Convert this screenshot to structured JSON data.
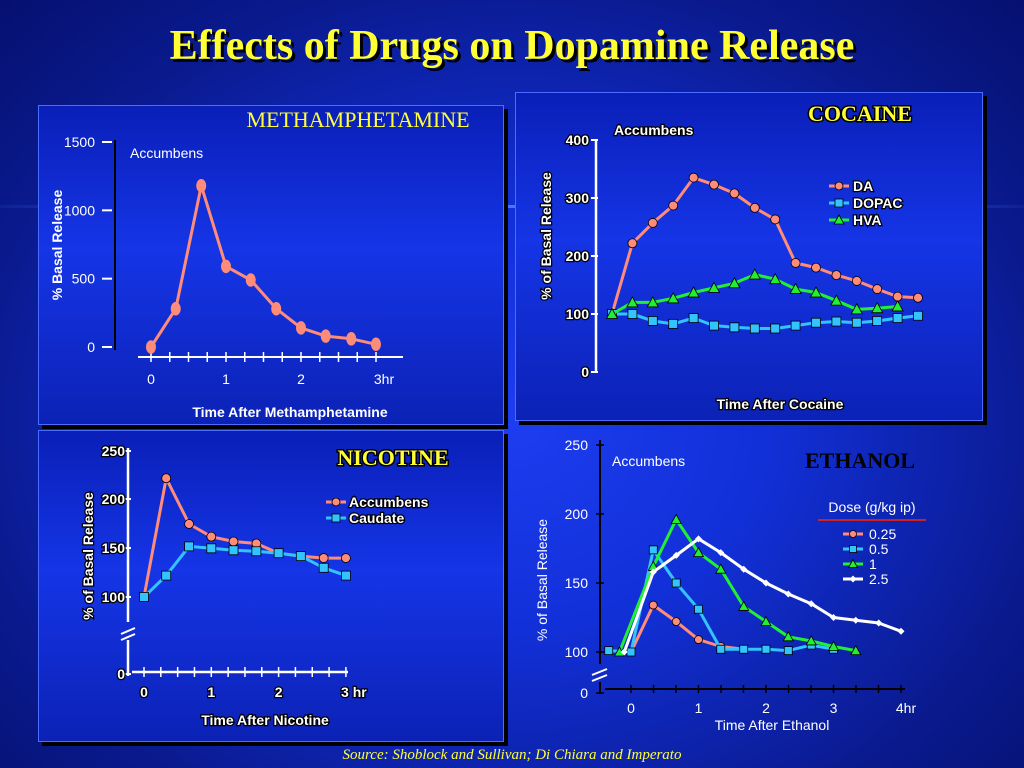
{
  "title": "Effects of Drugs on Dopamine Release",
  "source": "Source: Shoblock and Sullivan; Di Chiara and Imperato",
  "colors": {
    "title": "#ffff33",
    "salmon": "#ff8c78",
    "cyan": "#33c4ff",
    "green": "#22ee33",
    "white": "#ffffff"
  },
  "chart_data": [
    {
      "type": "line",
      "title": "METHAMPHETAMINE",
      "region": "Accumbens",
      "ylabel": "% Basal Release",
      "xlabel": "Time After Methamphetamine",
      "ylim": [
        0,
        1500
      ],
      "xlim": [
        0,
        3
      ],
      "yticks": [
        "0",
        "500",
        "1000",
        "1500"
      ],
      "xticks": [
        "0",
        "1",
        "2",
        "3hr"
      ],
      "series": [
        {
          "x": [
            0,
            0.33,
            0.67,
            1,
            1.33,
            1.67,
            2,
            2.33,
            2.67,
            3
          ],
          "y": [
            0,
            280,
            1180,
            590,
            490,
            280,
            140,
            80,
            60,
            20
          ]
        }
      ]
    },
    {
      "type": "line",
      "title": "COCAINE",
      "region": "Accumbens",
      "ylabel": "% of Basal Release",
      "xlabel": "Time After Cocaine",
      "ylim": [
        0,
        400
      ],
      "yticks": [
        "0",
        "100",
        "200",
        "300",
        "400"
      ],
      "legend": [
        "DA",
        "DOPAC",
        "HVA"
      ],
      "series": [
        {
          "name": "DA",
          "y": [
            100,
            222,
            257,
            287,
            335,
            323,
            308,
            283,
            263,
            188,
            180,
            167,
            157,
            143,
            130,
            128
          ]
        },
        {
          "name": "DOPAC",
          "y": [
            100,
            100,
            88,
            83,
            93,
            80,
            77,
            75,
            75,
            80,
            85,
            87,
            85,
            88,
            93,
            97
          ]
        },
        {
          "name": "HVA",
          "y": [
            100,
            120,
            120,
            127,
            137,
            145,
            153,
            168,
            160,
            143,
            137,
            123,
            108,
            110,
            113
          ]
        }
      ]
    },
    {
      "type": "line",
      "title": "NICOTINE",
      "ylabel": "% of Basal Release",
      "xlabel": "Time After Nicotine",
      "yticks": [
        "0",
        "100",
        "150",
        "200",
        "250"
      ],
      "xticks": [
        "0",
        "1",
        "2",
        "3 hr"
      ],
      "legend": [
        "Accumbens",
        "Caudate"
      ],
      "series": [
        {
          "name": "Accumbens",
          "x": [
            0,
            0.33,
            0.67,
            1,
            1.33,
            1.67,
            2,
            2.33,
            2.67,
            3
          ],
          "y": [
            100,
            222,
            175,
            162,
            157,
            155,
            145,
            142,
            140,
            140
          ]
        },
        {
          "name": "Caudate",
          "x": [
            0,
            0.33,
            0.67,
            1,
            1.33,
            1.67,
            2,
            2.33,
            2.67,
            3
          ],
          "y": [
            100,
            122,
            152,
            150,
            148,
            147,
            145,
            142,
            130,
            122
          ]
        }
      ]
    },
    {
      "type": "line",
      "title": "ETHANOL",
      "region": "Accumbens",
      "ylabel": "% of Basal Release",
      "xlabel": "Time After Ethanol",
      "yticks": [
        "0",
        "100",
        "150",
        "200",
        "250"
      ],
      "xticks": [
        "0",
        "1",
        "2",
        "3",
        "4hr"
      ],
      "legend_title": "Dose (g/kg ip)",
      "legend": [
        "0.25",
        "0.5",
        "1",
        "2.5"
      ],
      "series": [
        {
          "name": "0.25",
          "x": [
            0,
            0.33,
            0.67,
            1,
            1.33,
            1.67
          ],
          "y": [
            100,
            134,
            122,
            109,
            104,
            102
          ]
        },
        {
          "name": "0.5",
          "x": [
            -0.33,
            0,
            0.33,
            0.67,
            1,
            1.33,
            1.67,
            2,
            2.33,
            2.67,
            3
          ],
          "y": [
            101,
            100,
            174,
            150,
            131,
            102,
            102,
            102,
            101,
            105,
            102
          ]
        },
        {
          "name": "1",
          "x": [
            -0.17,
            0.33,
            0.67,
            1,
            1.33,
            1.67,
            2,
            2.33,
            2.67,
            3,
            3.33
          ],
          "y": [
            100,
            162,
            196,
            172,
            160,
            133,
            122,
            111,
            108,
            104,
            101
          ]
        },
        {
          "name": "2.5",
          "x": [
            -0.1,
            0.33,
            0.67,
            1,
            1.33,
            1.67,
            2,
            2.33,
            2.67,
            3,
            3.33,
            3.67,
            4
          ],
          "y": [
            100,
            158,
            170,
            182,
            172,
            160,
            150,
            142,
            135,
            125,
            123,
            121,
            115
          ]
        }
      ]
    }
  ]
}
